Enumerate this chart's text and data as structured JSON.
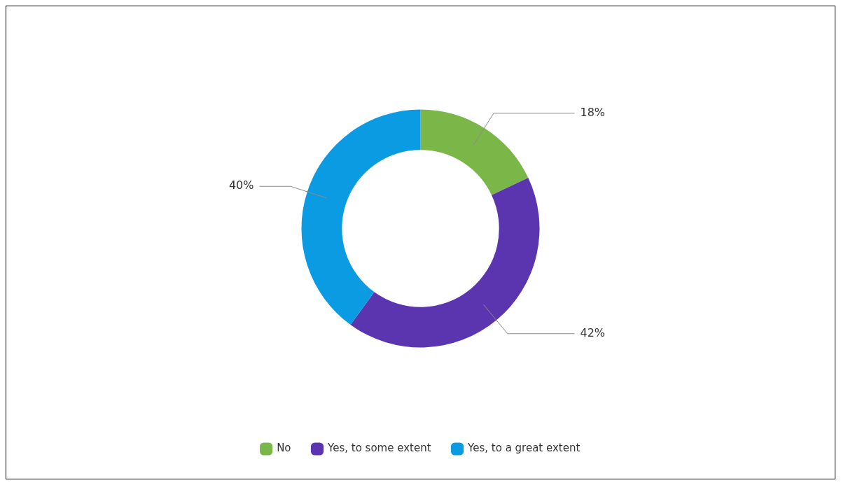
{
  "chart_data": {
    "type": "donut",
    "categories": [
      "No",
      "Yes, to some extent",
      "Yes, to a great extent"
    ],
    "values": [
      18,
      42,
      40
    ],
    "colors": [
      "#7ab648",
      "#5b35b0",
      "#0a9be3"
    ],
    "value_labels": [
      "18%",
      "42%",
      "40%"
    ],
    "legend": "bottom"
  }
}
